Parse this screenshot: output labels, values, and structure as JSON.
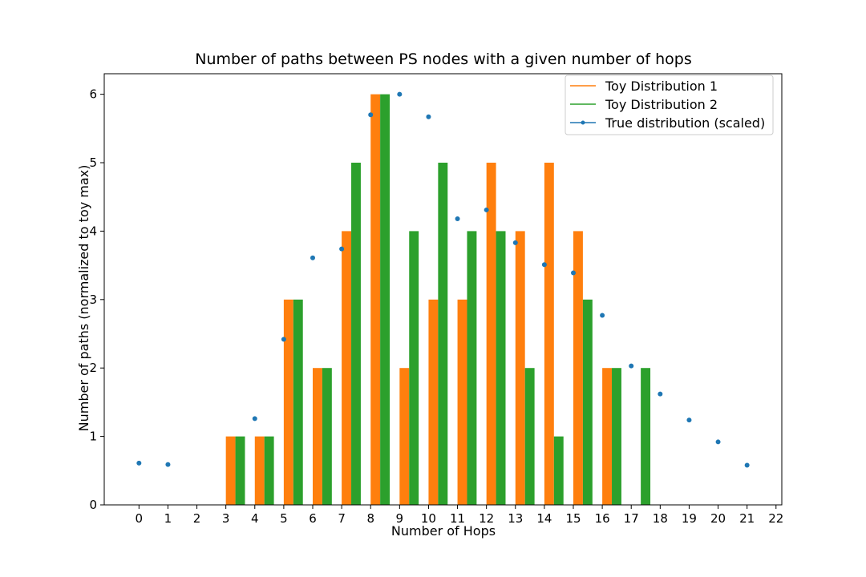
{
  "chart_data": {
    "type": "bar",
    "title": "Number of paths between PS nodes with a given number of hops",
    "xlabel": "Number of Hops",
    "ylabel": "Number of paths (normalized to toy max)",
    "x_ticks": [
      0,
      1,
      2,
      3,
      4,
      5,
      6,
      7,
      8,
      9,
      10,
      11,
      12,
      13,
      14,
      15,
      16,
      17,
      18,
      19,
      20,
      21,
      22
    ],
    "y_ticks": [
      0,
      1,
      2,
      3,
      4,
      5,
      6
    ],
    "xlim": [
      -1.2,
      22.2
    ],
    "ylim": [
      0,
      6.3
    ],
    "grid": false,
    "legend_position": "top-right",
    "bar_series": [
      {
        "name": "Toy Distribution 1",
        "color": "#ff7f0e",
        "x": [
          3,
          4,
          5,
          6,
          7,
          8,
          9,
          10,
          11,
          12,
          13,
          14,
          15,
          16
        ],
        "values": [
          1,
          1,
          3,
          2,
          4,
          6,
          2,
          3,
          3,
          5,
          4,
          5,
          4,
          2
        ]
      },
      {
        "name": "Toy Distribution 2",
        "color": "#2ca02c",
        "x": [
          3,
          4,
          5,
          6,
          7,
          8,
          9,
          10,
          11,
          12,
          13,
          14,
          15,
          16,
          17
        ],
        "values": [
          1,
          1,
          3,
          2,
          5,
          6,
          4,
          5,
          4,
          4,
          2,
          1,
          3,
          2,
          2
        ]
      }
    ],
    "point_series": {
      "name": "True distribution (scaled)",
      "color": "#1f77b4",
      "x": [
        0,
        1,
        4,
        5,
        6,
        7,
        8,
        9,
        10,
        11,
        12,
        13,
        14,
        15,
        16,
        17,
        18,
        19,
        20,
        21
      ],
      "values": [
        0.61,
        0.59,
        1.26,
        2.42,
        3.61,
        3.74,
        5.7,
        6.0,
        5.67,
        4.18,
        4.31,
        3.83,
        3.51,
        3.39,
        2.77,
        2.03,
        1.62,
        1.24,
        0.92,
        0.58
      ]
    }
  }
}
